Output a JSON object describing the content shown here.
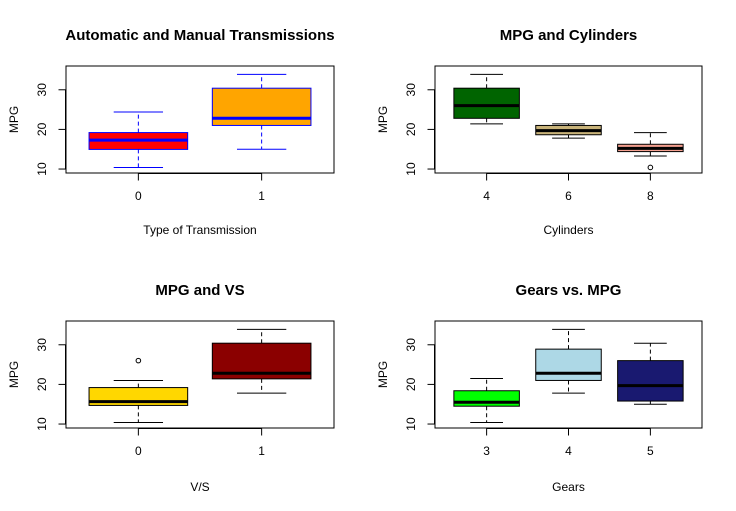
{
  "chart_data": [
    {
      "type": "boxplot",
      "title": "Automatic and Manual Transmissions",
      "xlabel": "Type of Transmission",
      "ylabel": "MPG",
      "ylim": [
        9,
        36
      ],
      "yticks": [
        10,
        20,
        30
      ],
      "categories": [
        "0",
        "1"
      ],
      "box_fill": [
        "#ff0000",
        "#ffa500"
      ],
      "box_border": "#0000ff",
      "median_color": "#0000ff",
      "boxes": [
        {
          "min": 10.4,
          "q1": 14.95,
          "median": 17.3,
          "q3": 19.2,
          "max": 24.4,
          "outliers": []
        },
        {
          "min": 15.0,
          "q1": 21.0,
          "median": 22.8,
          "q3": 30.4,
          "max": 33.9,
          "outliers": []
        }
      ]
    },
    {
      "type": "boxplot",
      "title": "MPG and Cylinders",
      "xlabel": "Cylinders",
      "ylabel": "MPG",
      "ylim": [
        9,
        36
      ],
      "yticks": [
        10,
        20,
        30
      ],
      "categories": [
        "4",
        "6",
        "8"
      ],
      "box_fill": [
        "#006400",
        "#c8b37a",
        "#f4a090"
      ],
      "box_border": "#000000",
      "median_color": "#000000",
      "boxes": [
        {
          "min": 21.4,
          "q1": 22.8,
          "median": 26.0,
          "q3": 30.4,
          "max": 33.9,
          "outliers": []
        },
        {
          "min": 17.8,
          "q1": 18.65,
          "median": 19.7,
          "q3": 21.0,
          "max": 21.4,
          "outliers": []
        },
        {
          "min": 13.3,
          "q1": 14.4,
          "median": 15.2,
          "q3": 16.25,
          "max": 19.2,
          "outliers": [
            10.4
          ]
        }
      ]
    },
    {
      "type": "boxplot",
      "title": "MPG and VS",
      "xlabel": "V/S",
      "ylabel": "MPG",
      "ylim": [
        9,
        36
      ],
      "yticks": [
        10,
        20,
        30
      ],
      "categories": [
        "0",
        "1"
      ],
      "box_fill": [
        "#ffd700",
        "#8b0000"
      ],
      "box_border": "#000000",
      "median_color": "#000000",
      "boxes": [
        {
          "min": 10.4,
          "q1": 14.7,
          "median": 15.65,
          "q3": 19.2,
          "max": 21.0,
          "outliers": [
            26.0
          ]
        },
        {
          "min": 17.8,
          "q1": 21.4,
          "median": 22.8,
          "q3": 30.4,
          "max": 33.9,
          "outliers": []
        }
      ]
    },
    {
      "type": "boxplot",
      "title": "Gears vs. MPG",
      "xlabel": "Gears",
      "ylabel": "MPG",
      "ylim": [
        9,
        36
      ],
      "yticks": [
        10,
        20,
        30
      ],
      "categories": [
        "3",
        "4",
        "5"
      ],
      "box_fill": [
        "#00ff00",
        "#add8e6",
        "#191970"
      ],
      "box_border": "#000000",
      "median_color": "#000000",
      "boxes": [
        {
          "min": 10.4,
          "q1": 14.5,
          "median": 15.5,
          "q3": 18.4,
          "max": 21.5,
          "outliers": []
        },
        {
          "min": 17.8,
          "q1": 21.0,
          "median": 22.8,
          "q3": 28.9,
          "max": 33.9,
          "outliers": []
        },
        {
          "min": 15.0,
          "q1": 15.8,
          "median": 19.7,
          "q3": 26.0,
          "max": 30.4,
          "outliers": []
        }
      ]
    }
  ]
}
